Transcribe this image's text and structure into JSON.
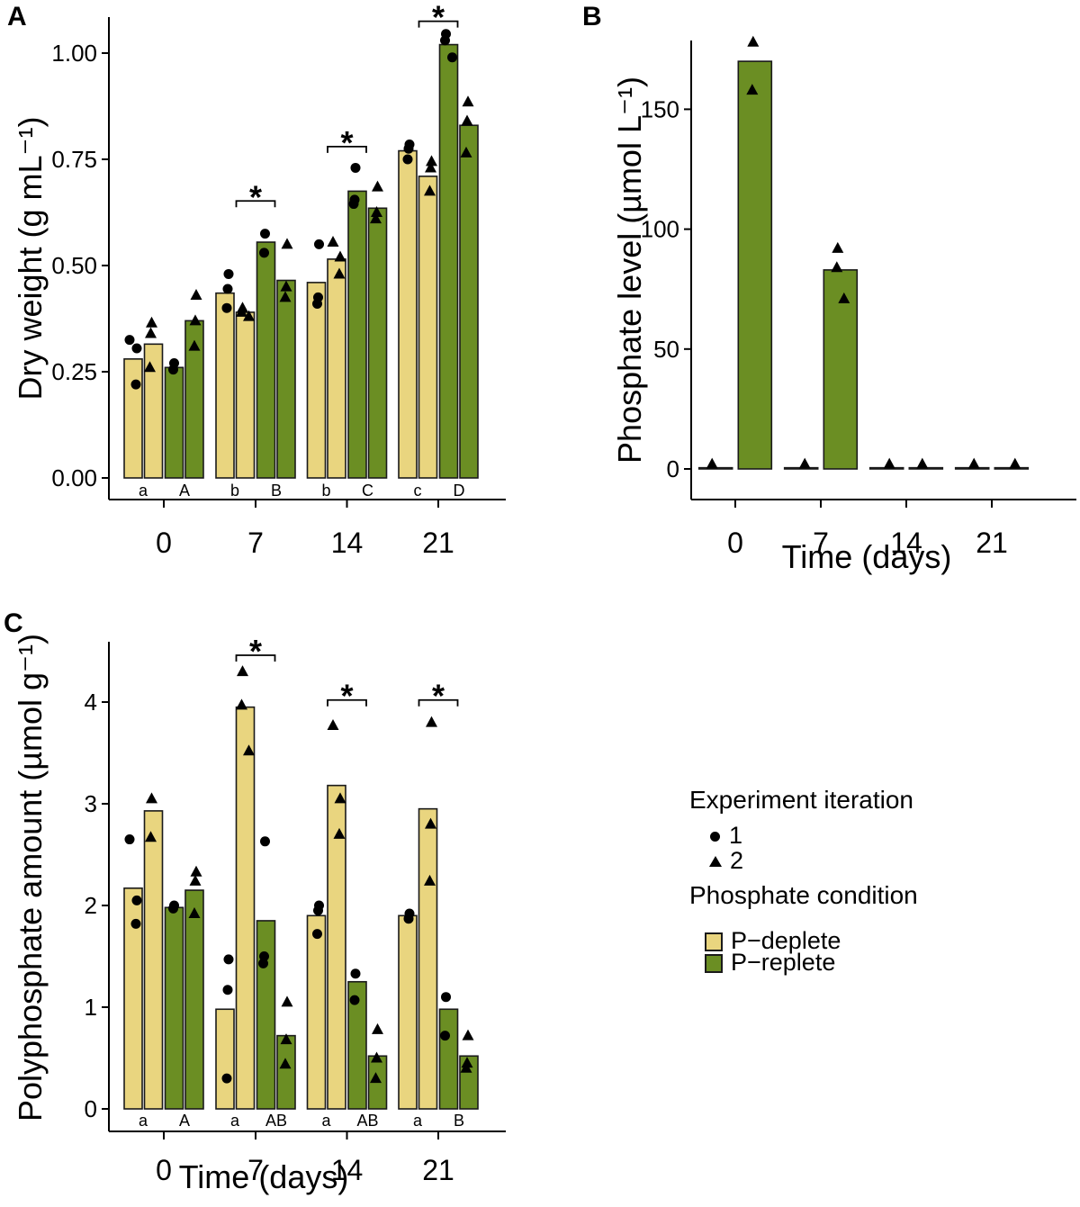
{
  "colors": {
    "deplete": "#e9d57f",
    "replete": "#6b8e23",
    "point": "#000000",
    "axis": "#000000",
    "bar_outline": "#1a1a1a"
  },
  "panel_labels": {
    "A": "A",
    "B": "B",
    "C": "C"
  },
  "legend": {
    "iteration_title": "Experiment iteration",
    "iterations": [
      {
        "marker": "circle",
        "label": "1"
      },
      {
        "marker": "triangle",
        "label": "2"
      }
    ],
    "condition_title": "Phosphate condition",
    "conditions": [
      {
        "swatch": "deplete",
        "label": "P−deplete"
      },
      {
        "swatch": "replete",
        "label": "P−replete"
      }
    ]
  },
  "chart_data": [
    {
      "panel": "A",
      "type": "bar",
      "title": "",
      "ylabel": "Dry weight (g mL⁻¹)",
      "xlabel": "",
      "categories": [
        "0",
        "7",
        "14",
        "21"
      ],
      "ylim": [
        0,
        1.08
      ],
      "yticks": [
        {
          "value": 0,
          "label": "0.00"
        },
        {
          "value": 0.25,
          "label": "0.25"
        },
        {
          "value": 0.5,
          "label": "0.50"
        },
        {
          "value": 0.75,
          "label": "0.75"
        },
        {
          "value": 1,
          "label": "1.00"
        }
      ],
      "series": [
        {
          "name": "P-deplete iteration 1",
          "condition": "deplete",
          "iteration": "1",
          "marker": "circle",
          "values": [
            0.28,
            0.435,
            0.46,
            0.77
          ],
          "points": [
            [
              0.325,
              0.305,
              0.22
            ],
            [
              0.48,
              0.445,
              0.4
            ],
            [
              0.55,
              0.425,
              0.41
            ],
            [
              0.785,
              0.775,
              0.75
            ]
          ]
        },
        {
          "name": "P-deplete iteration 2",
          "condition": "deplete",
          "iteration": "2",
          "marker": "triangle",
          "values": [
            0.315,
            0.39,
            0.515,
            0.71
          ],
          "points": [
            [
              0.365,
              0.34,
              0.26
            ],
            [
              0.4,
              0.39,
              0.38
            ],
            [
              0.555,
              0.52,
              0.48
            ],
            [
              0.745,
              0.73,
              0.675
            ]
          ]
        },
        {
          "name": "P-replete iteration 1",
          "condition": "replete",
          "iteration": "1",
          "marker": "circle",
          "values": [
            0.26,
            0.555,
            0.675,
            1.02
          ],
          "points": [
            [
              0.27,
              0.255
            ],
            [
              0.575,
              0.53
            ],
            [
              0.73,
              0.655,
              0.645
            ],
            [
              1.045,
              1.03,
              0.99
            ]
          ]
        },
        {
          "name": "P-replete iteration 2",
          "condition": "replete",
          "iteration": "2",
          "marker": "triangle",
          "values": [
            0.37,
            0.465,
            0.635,
            0.83
          ],
          "points": [
            [
              0.43,
              0.37,
              0.31
            ],
            [
              0.55,
              0.45,
              0.425
            ],
            [
              0.685,
              0.625,
              0.61
            ],
            [
              0.885,
              0.84,
              0.765
            ]
          ]
        }
      ],
      "letters": [
        [
          "a",
          "A"
        ],
        [
          "b",
          "B"
        ],
        [
          "b",
          "C"
        ],
        [
          "c",
          "D"
        ]
      ],
      "significance": [
        {
          "between": "7",
          "label": "*",
          "height": 0.652
        },
        {
          "between": "14",
          "label": "*",
          "height": 0.78
        },
        {
          "between": "21",
          "label": "*",
          "height": 1.075
        }
      ]
    },
    {
      "panel": "B",
      "type": "bar",
      "title": "",
      "ylabel": "Phosphate level (µmol L⁻¹)",
      "xlabel": "Time (days)",
      "categories": [
        "0",
        "7",
        "14",
        "21"
      ],
      "ylim": [
        0,
        180
      ],
      "yticks": [
        {
          "value": 0,
          "label": "0"
        },
        {
          "value": 50,
          "label": "50"
        },
        {
          "value": 100,
          "label": "100"
        },
        {
          "value": 150,
          "label": "150"
        }
      ],
      "series": [
        {
          "name": "P-deplete",
          "condition": "deplete",
          "iteration": "2",
          "marker": "triangle",
          "values": [
            0.5,
            0.5,
            0.5,
            0.5
          ],
          "points": [
            [
              2
            ],
            [
              2
            ],
            [
              2
            ],
            [
              2
            ]
          ]
        },
        {
          "name": "P-replete",
          "condition": "replete",
          "iteration": "2",
          "marker": "triangle",
          "values": [
            170,
            83,
            0.5,
            0.5
          ],
          "points": [
            [
              178,
              158
            ],
            [
              92,
              84,
              71
            ],
            [
              2
            ],
            [
              2
            ]
          ]
        }
      ],
      "letters": null,
      "significance": []
    },
    {
      "panel": "C",
      "type": "bar",
      "title": "",
      "ylabel": "Polyphosphate amount (µmol g⁻¹)",
      "xlabel": "Time (days)",
      "categories": [
        "0",
        "7",
        "14",
        "21"
      ],
      "ylim": [
        0,
        4.6
      ],
      "yticks": [
        {
          "value": 0,
          "label": "0"
        },
        {
          "value": 1,
          "label": "1"
        },
        {
          "value": 2,
          "label": "2"
        },
        {
          "value": 3,
          "label": "3"
        },
        {
          "value": 4,
          "label": "4"
        }
      ],
      "series": [
        {
          "name": "P-deplete iteration 1",
          "condition": "deplete",
          "iteration": "1",
          "marker": "circle",
          "values": [
            2.17,
            0.98,
            1.9,
            1.9
          ],
          "points": [
            [
              2.65,
              2.05,
              1.82
            ],
            [
              1.47,
              1.17,
              0.3
            ],
            [
              2.0,
              1.95,
              1.72
            ],
            [
              1.92,
              1.87
            ]
          ]
        },
        {
          "name": "P-deplete iteration 2",
          "condition": "deplete",
          "iteration": "2",
          "marker": "triangle",
          "values": [
            2.93,
            3.95,
            3.18,
            2.95
          ],
          "points": [
            [
              3.05,
              2.67
            ],
            [
              4.3,
              3.97,
              3.52
            ],
            [
              3.77,
              3.05,
              2.7
            ],
            [
              3.8,
              2.8,
              2.24
            ]
          ]
        },
        {
          "name": "P-replete iteration 1",
          "condition": "replete",
          "iteration": "1",
          "marker": "circle",
          "values": [
            1.98,
            1.85,
            1.25,
            0.98
          ],
          "points": [
            [
              2.0,
              1.97
            ],
            [
              2.63,
              1.5,
              1.43
            ],
            [
              1.33,
              1.07
            ],
            [
              1.1,
              0.72
            ]
          ]
        },
        {
          "name": "P-replete iteration 2",
          "condition": "replete",
          "iteration": "2",
          "marker": "triangle",
          "values": [
            2.15,
            0.72,
            0.52,
            0.52
          ],
          "points": [
            [
              2.33,
              2.24,
              1.92
            ],
            [
              1.05,
              0.68,
              0.44
            ],
            [
              0.78,
              0.5,
              0.3
            ],
            [
              0.72,
              0.45,
              0.4
            ]
          ]
        }
      ],
      "letters": [
        [
          "a",
          "A"
        ],
        [
          "a",
          "AB"
        ],
        [
          "a",
          "AB"
        ],
        [
          "a",
          "B"
        ]
      ],
      "significance": [
        {
          "between": "7",
          "label": "*",
          "height": 4.46
        },
        {
          "between": "14",
          "label": "*",
          "height": 4.02
        },
        {
          "between": "21",
          "label": "*",
          "height": 4.02
        }
      ]
    }
  ]
}
